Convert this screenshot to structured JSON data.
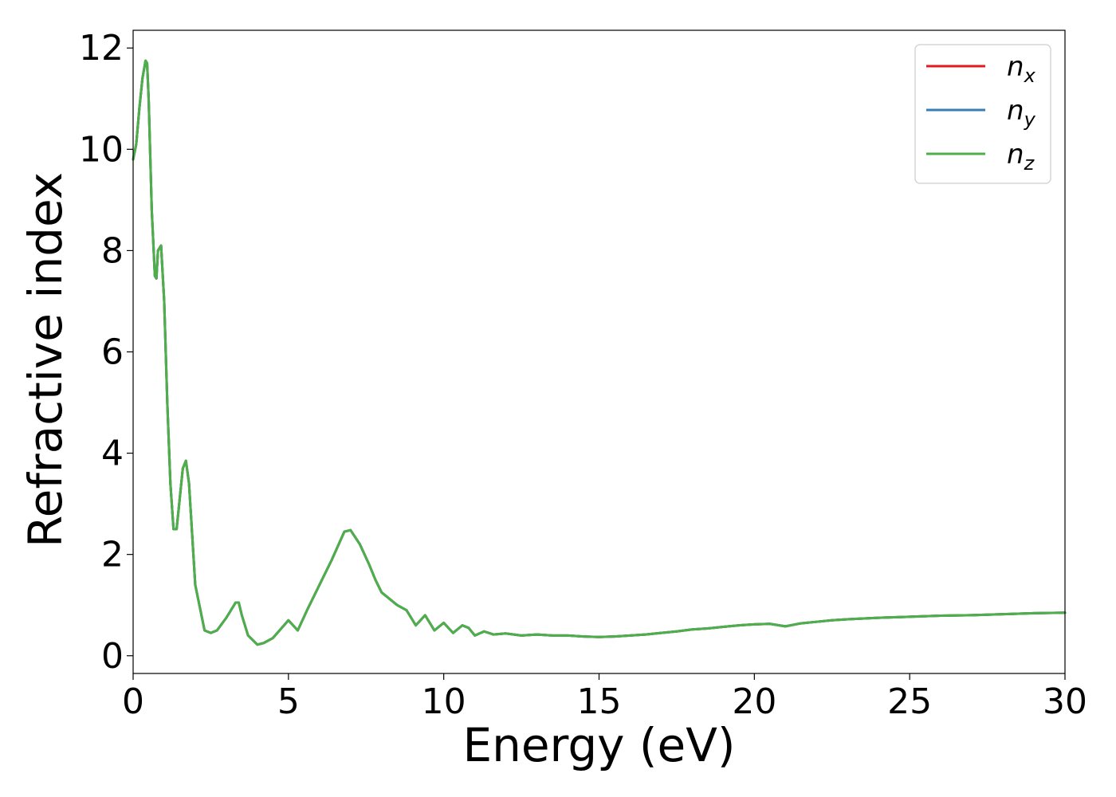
{
  "chart_data": {
    "type": "line",
    "xlabel": "Energy (eV)",
    "ylabel": "Refractive index",
    "xlim": [
      0,
      30
    ],
    "ylim": [
      -0.35,
      12.35
    ],
    "xticks": [
      0,
      5,
      10,
      15,
      20,
      25,
      30
    ],
    "yticks": [
      0,
      2,
      4,
      6,
      8,
      10,
      12
    ],
    "grid": false,
    "legend_position": "top-right",
    "x": [
      0,
      0.1,
      0.2,
      0.3,
      0.4,
      0.45,
      0.5,
      0.6,
      0.7,
      0.75,
      0.8,
      0.9,
      1.0,
      1.1,
      1.2,
      1.3,
      1.4,
      1.5,
      1.6,
      1.7,
      1.8,
      1.9,
      2.0,
      2.1,
      2.2,
      2.3,
      2.5,
      2.7,
      3.0,
      3.3,
      3.4,
      3.5,
      3.7,
      4.0,
      4.2,
      4.5,
      5.0,
      5.3,
      5.6,
      6.0,
      6.4,
      6.8,
      7.0,
      7.3,
      7.6,
      7.8,
      8.0,
      8.5,
      8.8,
      9.1,
      9.4,
      9.7,
      10.0,
      10.3,
      10.6,
      10.8,
      11.0,
      11.3,
      11.6,
      12.0,
      12.5,
      13.0,
      13.5,
      14.0,
      14.5,
      15.0,
      15.5,
      16.0,
      16.5,
      17.0,
      17.5,
      18.0,
      18.5,
      19.0,
      19.5,
      20.0,
      20.5,
      20.8,
      21.0,
      21.5,
      22.0,
      22.5,
      23.0,
      24.0,
      25.0,
      26.0,
      27.0,
      28.0,
      29.0,
      30.0
    ],
    "series": [
      {
        "name": "n_x",
        "color": "#e41a1c",
        "values": [
          9.8,
          10.1,
          10.8,
          11.4,
          11.75,
          11.7,
          11.0,
          8.8,
          7.5,
          7.45,
          8.0,
          8.1,
          7.0,
          5.0,
          3.4,
          2.5,
          2.5,
          3.1,
          3.7,
          3.85,
          3.4,
          2.4,
          1.4,
          1.1,
          0.8,
          0.5,
          0.45,
          0.5,
          0.75,
          1.05,
          1.05,
          0.8,
          0.4,
          0.22,
          0.25,
          0.35,
          0.7,
          0.5,
          0.9,
          1.4,
          1.9,
          2.45,
          2.48,
          2.2,
          1.8,
          1.5,
          1.25,
          1.0,
          0.9,
          0.6,
          0.8,
          0.5,
          0.65,
          0.45,
          0.6,
          0.55,
          0.4,
          0.48,
          0.42,
          0.44,
          0.4,
          0.42,
          0.4,
          0.4,
          0.38,
          0.37,
          0.38,
          0.4,
          0.42,
          0.45,
          0.48,
          0.52,
          0.54,
          0.57,
          0.6,
          0.62,
          0.63,
          0.6,
          0.58,
          0.64,
          0.67,
          0.7,
          0.72,
          0.75,
          0.77,
          0.79,
          0.8,
          0.82,
          0.84,
          0.85
        ]
      },
      {
        "name": "n_y",
        "color": "#377eb8",
        "values": [
          9.8,
          10.1,
          10.8,
          11.4,
          11.75,
          11.7,
          11.0,
          8.8,
          7.5,
          7.45,
          8.0,
          8.1,
          7.0,
          5.0,
          3.4,
          2.5,
          2.5,
          3.1,
          3.7,
          3.85,
          3.4,
          2.4,
          1.4,
          1.1,
          0.8,
          0.5,
          0.45,
          0.5,
          0.75,
          1.05,
          1.05,
          0.8,
          0.4,
          0.22,
          0.25,
          0.35,
          0.7,
          0.5,
          0.9,
          1.4,
          1.9,
          2.45,
          2.48,
          2.2,
          1.8,
          1.5,
          1.25,
          1.0,
          0.9,
          0.6,
          0.8,
          0.5,
          0.65,
          0.45,
          0.6,
          0.55,
          0.4,
          0.48,
          0.42,
          0.44,
          0.4,
          0.42,
          0.4,
          0.4,
          0.38,
          0.37,
          0.38,
          0.4,
          0.42,
          0.45,
          0.48,
          0.52,
          0.54,
          0.57,
          0.6,
          0.62,
          0.63,
          0.6,
          0.58,
          0.64,
          0.67,
          0.7,
          0.72,
          0.75,
          0.77,
          0.79,
          0.8,
          0.82,
          0.84,
          0.85
        ]
      },
      {
        "name": "n_z",
        "color": "#4daf4a",
        "values": [
          9.8,
          10.1,
          10.8,
          11.4,
          11.75,
          11.7,
          11.0,
          8.8,
          7.5,
          7.45,
          8.0,
          8.1,
          7.0,
          5.0,
          3.4,
          2.5,
          2.5,
          3.1,
          3.7,
          3.85,
          3.4,
          2.4,
          1.4,
          1.1,
          0.8,
          0.5,
          0.45,
          0.5,
          0.75,
          1.05,
          1.05,
          0.8,
          0.4,
          0.22,
          0.25,
          0.35,
          0.7,
          0.5,
          0.9,
          1.4,
          1.9,
          2.45,
          2.48,
          2.2,
          1.8,
          1.5,
          1.25,
          1.0,
          0.9,
          0.6,
          0.8,
          0.5,
          0.65,
          0.45,
          0.6,
          0.55,
          0.4,
          0.48,
          0.42,
          0.44,
          0.4,
          0.42,
          0.4,
          0.4,
          0.38,
          0.37,
          0.38,
          0.4,
          0.42,
          0.45,
          0.48,
          0.52,
          0.54,
          0.57,
          0.6,
          0.62,
          0.63,
          0.6,
          0.58,
          0.64,
          0.67,
          0.7,
          0.72,
          0.75,
          0.77,
          0.79,
          0.8,
          0.82,
          0.84,
          0.85
        ]
      }
    ],
    "legend": [
      {
        "base": "n",
        "sub": "x",
        "color": "#e41a1c"
      },
      {
        "base": "n",
        "sub": "y",
        "color": "#377eb8"
      },
      {
        "base": "n",
        "sub": "z",
        "color": "#4daf4a"
      }
    ]
  }
}
